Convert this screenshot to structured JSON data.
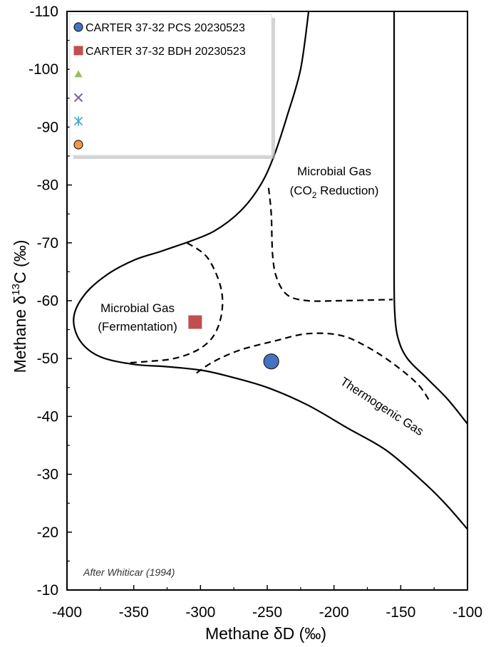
{
  "chart_data": {
    "type": "scatter",
    "xlabel": "Methane δD (‰)",
    "ylabel_prefix": "Methane δ",
    "ylabel_sup": "13",
    "ylabel_suffix": "C (‰)",
    "xlim": [
      -400,
      -100
    ],
    "ylim": [
      -10,
      -110
    ],
    "x_ticks": [
      -400,
      -350,
      -300,
      -250,
      -200,
      -150,
      -100
    ],
    "y_ticks": [
      -10,
      -20,
      -30,
      -40,
      -50,
      -60,
      -70,
      -80,
      -90,
      -100,
      -110
    ],
    "grid": false,
    "legend_position": "top-left",
    "series": [
      {
        "name": "CARTER 37-32 PCS 20230523",
        "marker": "circle",
        "color": "#4472c4",
        "points": [
          {
            "x": -247,
            "y": -49.5
          }
        ]
      },
      {
        "name": "CARTER 37-32 BDH 20230523",
        "marker": "square",
        "color": "#c0504d",
        "points": [
          {
            "x": -304,
            "y": -56.3
          }
        ]
      },
      {
        "name": "",
        "marker": "triangle",
        "color": "#9bbb59",
        "points": []
      },
      {
        "name": "",
        "marker": "x",
        "color": "#8064a2",
        "points": []
      },
      {
        "name": "",
        "marker": "star",
        "color": "#4bacc6",
        "points": []
      },
      {
        "name": "",
        "marker": "circle",
        "color": "#f79646",
        "points": []
      }
    ],
    "regions": {
      "co2_line1": "Microbial Gas",
      "co2_line2_prefix": "(CO",
      "co2_line2_sub": "2",
      "co2_line2_suffix": " Reduction)",
      "ferm_line1": "Microbial Gas",
      "ferm_line2": "(Fermentation)",
      "thermo": "Thermogenic Gas"
    },
    "annotation": "After Whiticar (1994)",
    "boundaries": {
      "solid_left": [
        [
          -311,
          -70
        ],
        [
          -330,
          -68.5
        ],
        [
          -350,
          -67
        ],
        [
          -370,
          -64.5
        ],
        [
          -387,
          -61
        ],
        [
          -395,
          -57
        ],
        [
          -390,
          -53
        ],
        [
          -375,
          -50.3
        ],
        [
          -350,
          -49
        ],
        [
          -325,
          -48.6
        ],
        [
          -300,
          -48
        ],
        [
          -280,
          -47
        ],
        [
          -250,
          -45
        ],
        [
          -220,
          -42
        ],
        [
          -190,
          -38
        ],
        [
          -160,
          -34
        ],
        [
          -130,
          -28
        ],
        [
          -115,
          -24.5
        ],
        [
          -100,
          -20.5
        ]
      ],
      "solid_upper": [
        [
          -311,
          -70
        ],
        [
          -290,
          -72
        ],
        [
          -270,
          -75.5
        ],
        [
          -255,
          -80
        ],
        [
          -245,
          -85
        ],
        [
          -235,
          -92
        ],
        [
          -225,
          -100
        ],
        [
          -219,
          -110
        ]
      ],
      "solid_right": [
        [
          -155,
          -110
        ],
        [
          -155,
          -100
        ],
        [
          -155,
          -80
        ],
        [
          -155,
          -65
        ],
        [
          -154.5,
          -58
        ],
        [
          -152,
          -53.5
        ],
        [
          -145,
          -50
        ],
        [
          -130,
          -46.5
        ],
        [
          -115,
          -43
        ],
        [
          -100,
          -38.7
        ]
      ],
      "dash_fermentation": [
        [
          -310,
          -70
        ],
        [
          -295,
          -67.5
        ],
        [
          -285,
          -62.5
        ],
        [
          -284,
          -58
        ],
        [
          -290,
          -54
        ],
        [
          -302,
          -51.5
        ],
        [
          -320,
          -50
        ],
        [
          -340,
          -49.5
        ],
        [
          -357,
          -49.2
        ]
      ],
      "dash_co2": [
        [
          -249,
          -79.5
        ],
        [
          -247,
          -75
        ],
        [
          -246,
          -68
        ],
        [
          -243,
          -64
        ],
        [
          -235,
          -61
        ],
        [
          -220,
          -60
        ],
        [
          -195,
          -60
        ],
        [
          -175,
          -60.1
        ],
        [
          -156,
          -60.2
        ]
      ],
      "dash_thermo": [
        [
          -303,
          -47.5
        ],
        [
          -290,
          -49.5
        ],
        [
          -270,
          -51.5
        ],
        [
          -245,
          -53
        ],
        [
          -220,
          -54.3
        ],
        [
          -195,
          -54
        ],
        [
          -175,
          -52
        ],
        [
          -155,
          -49
        ],
        [
          -137,
          -45.5
        ],
        [
          -128,
          -42.5
        ]
      ]
    }
  }
}
